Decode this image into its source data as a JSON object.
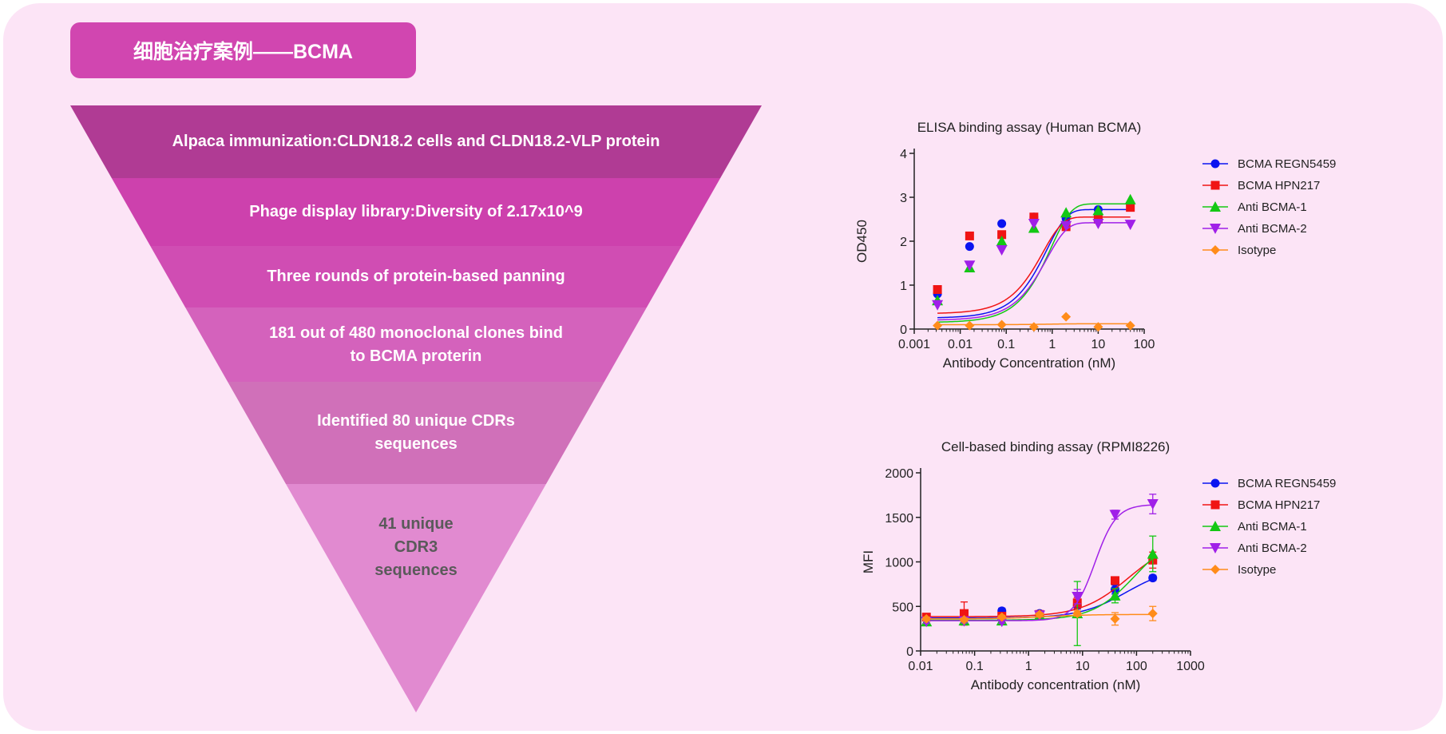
{
  "header": {
    "title": "细胞治疗案例——BCMA"
  },
  "funnel": {
    "tiers": [
      {
        "text": "Alpaca immunization:CLDN18.2 cells and CLDN18.2-VLP protein",
        "color": "#b03b94"
      },
      {
        "text": "Phage display library:Diversity of 2.17x10^9",
        "color": "#cd41ad"
      },
      {
        "text": "Three rounds of protein-based panning",
        "color": "#d04db3"
      },
      {
        "text": "181 out of 480 monoclonal clones bind\nto BCMA proterin",
        "color": "#d462bc"
      },
      {
        "text": "Identified 80 unique CDRs\nsequences",
        "color": "#d070b9"
      },
      {
        "text": "41 unique\nCDR3\nsequences",
        "color": "#e18ad0"
      }
    ]
  },
  "chart_data": [
    {
      "type": "scatter",
      "title": "ELISA binding assay (Human BCMA)",
      "xlabel": "Antibody Concentration (nM)",
      "ylabel": "OD450",
      "xscale": "log",
      "xlim": [
        0.001,
        100
      ],
      "ylim": [
        0,
        4
      ],
      "xticks": [
        "0.001",
        "0.01",
        "0.1",
        "1",
        "10",
        "100"
      ],
      "yticks": [
        "0",
        "1",
        "2",
        "3",
        "4"
      ],
      "grid": false,
      "legend": "right",
      "series": [
        {
          "name": "BCMA REGN5459",
          "color": "#0a14f0",
          "marker": "circle",
          "x": [
            0.0032,
            0.016,
            0.08,
            0.4,
            2,
            10,
            50
          ],
          "y": [
            0.8,
            1.88,
            2.4,
            2.55,
            2.52,
            2.72,
            2.85
          ],
          "fit": [
            0.25,
            2.72,
            1.3
          ]
        },
        {
          "name": "BCMA HPN217",
          "color": "#f01414",
          "marker": "square",
          "x": [
            0.0032,
            0.016,
            0.08,
            0.4,
            2,
            10,
            50
          ],
          "y": [
            0.9,
            2.12,
            2.15,
            2.55,
            2.33,
            2.5,
            2.77
          ],
          "fit": [
            0.35,
            2.55,
            1.6
          ]
        },
        {
          "name": "Anti BCMA-1",
          "color": "#14c814",
          "marker": "triangle-up",
          "x": [
            0.0032,
            0.016,
            0.08,
            0.4,
            2,
            10,
            50
          ],
          "y": [
            0.65,
            1.4,
            2.0,
            2.3,
            2.65,
            2.7,
            2.95
          ],
          "fit": [
            0.15,
            2.85,
            1.05
          ]
        },
        {
          "name": "Anti BCMA-2",
          "color": "#a020e8",
          "marker": "triangle-down",
          "x": [
            0.0032,
            0.016,
            0.08,
            0.4,
            2,
            10,
            50
          ],
          "y": [
            0.55,
            1.45,
            1.8,
            2.4,
            2.35,
            2.4,
            2.38
          ],
          "fit": [
            0.2,
            2.42,
            1.3
          ]
        },
        {
          "name": "Isotype",
          "color": "#ff8c1a",
          "marker": "diamond",
          "x": [
            0.0032,
            0.016,
            0.08,
            0.4,
            2,
            10,
            50
          ],
          "y": [
            0.08,
            0.08,
            0.1,
            0.05,
            0.28,
            0.05,
            0.08
          ],
          "fit": [
            0.1,
            0.12,
            1.0
          ]
        }
      ]
    },
    {
      "type": "scatter",
      "title": "Cell-based binding assay (RPMI8226)",
      "xlabel": "Antibody concentration (nM)",
      "ylabel": "MFI",
      "xscale": "log",
      "xlim": [
        0.01,
        1000
      ],
      "ylim": [
        0,
        2000
      ],
      "xticks": [
        "0.01",
        "0.1",
        "1",
        "10",
        "100",
        "1000"
      ],
      "yticks": [
        "0",
        "500",
        "1000",
        "1500",
        "2000"
      ],
      "grid": false,
      "legend": "right",
      "series": [
        {
          "name": "BCMA REGN5459",
          "color": "#0a14f0",
          "marker": "circle",
          "x": [
            0.0128,
            0.064,
            0.32,
            1.6,
            8,
            40,
            200
          ],
          "y": [
            370,
            390,
            450,
            420,
            510,
            690,
            820
          ],
          "err": [
            20,
            20,
            30,
            20,
            40,
            50,
            30
          ],
          "fit": [
            370,
            950,
            1.0,
            65
          ]
        },
        {
          "name": "BCMA HPN217",
          "color": "#f01414",
          "marker": "square",
          "x": [
            0.0128,
            0.064,
            0.32,
            1.6,
            8,
            40,
            200
          ],
          "y": [
            380,
            420,
            390,
            410,
            540,
            790,
            1020
          ],
          "err": [
            30,
            130,
            20,
            20,
            60,
            30,
            90
          ],
          "fit": [
            385,
            1250,
            1.0,
            70
          ]
        },
        {
          "name": "Anti BCMA-1",
          "color": "#14c814",
          "marker": "triangle-up",
          "x": [
            0.0128,
            0.064,
            0.32,
            1.6,
            8,
            40,
            200
          ],
          "y": [
            330,
            340,
            340,
            400,
            420,
            620,
            1090
          ],
          "err": [
            40,
            20,
            20,
            20,
            360,
            80,
            200
          ],
          "fit": [
            345,
            1350,
            1.1,
            95
          ]
        },
        {
          "name": "Anti BCMA-2",
          "color": "#a020e8",
          "marker": "triangle-down",
          "x": [
            0.0128,
            0.064,
            0.32,
            1.6,
            8,
            40,
            200
          ],
          "y": [
            330,
            335,
            330,
            400,
            610,
            1530,
            1650
          ],
          "err": [
            20,
            20,
            20,
            20,
            80,
            50,
            110
          ],
          "fit": [
            340,
            1645,
            2.2,
            17
          ]
        },
        {
          "name": "Isotype",
          "color": "#ff8c1a",
          "marker": "diamond",
          "x": [
            0.0128,
            0.064,
            0.32,
            1.6,
            8,
            40,
            200
          ],
          "y": [
            360,
            350,
            380,
            410,
            420,
            360,
            420
          ],
          "err": [
            20,
            20,
            20,
            20,
            30,
            70,
            80
          ],
          "fit": [
            360,
            410,
            1.0,
            2
          ]
        }
      ]
    }
  ]
}
